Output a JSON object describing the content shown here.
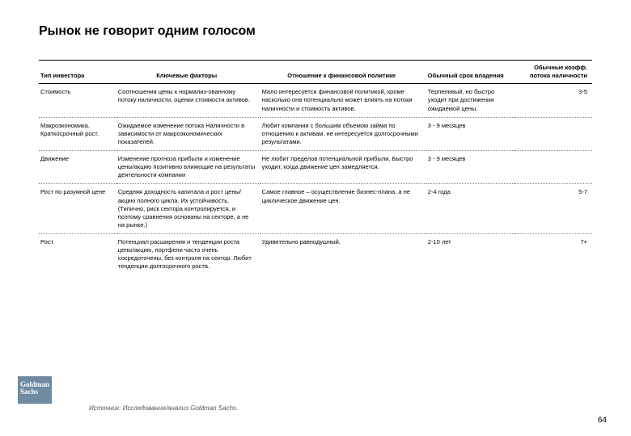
{
  "title": "Рынок не говорит одним голосом",
  "headers": {
    "c1": "Тип инвестора",
    "c2": "Ключевые факторы",
    "c3": "Отношение к финансовой политике",
    "c4": "Обычный срок владения",
    "c5": "Обычные коэфф. потока наличности"
  },
  "rows": [
    {
      "c1": "Стоимость",
      "c2": "Соотношения цены к нормализ-ованному потоку наличности, оценки стоимости активов.",
      "c3": "Мало интересуется финансовой политикой, кроме насколько она потенциально может влиять на потоки наличности и стоимость активов.",
      "c4": "Терпеливый, но быстро уходит при достижении ожидаемой цены.",
      "c5": "3-5"
    },
    {
      "c1": "Макроэкономика. Краткосрочный рост.",
      "c2": "Ожидаемое изменение потока Наличности в зависимости от макроэкономических показателей.",
      "c3": "Любит компании с большим объемом займа по отношению к активам, не интересуется долгосрочными результатами.",
      "c4": "3 - 9 месяцев",
      "c5": ""
    },
    {
      "c1": "Движение",
      "c2": "Изменение прогноза прибыли и изменение цены/акцию позитивно влияющие на результаты деятельности компании",
      "c3": "Не любит пределов потенциальной прибыли. Быстро уходит, когда движение цен замедляется.",
      "c4": "3 - 9 месяцев",
      "c5": ""
    },
    {
      "c1": "Рост по разумной цене",
      "c2": "Средняя доходность капитала и рост цены/акцию полного цикла. Их устойчивость. (Типично, риск сектора контролируется, и поэтому сравнения основаны на секторе, а не на рынке.)",
      "c3": "Самое главное – осуществление бизнес-плана, а не циклическое движение цен.",
      "c4": "2-4 года",
      "c5": "5-7"
    },
    {
      "c1": "Рост",
      "c2": "Потенциал расширения и тенденции роста цены/акцию, портфели часто очень сосредоточены, без контроля на сектор. Любит тенденции долгосрочного роста.",
      "c3": "Удивительно равнодушный.",
      "c4": "2-10 лет",
      "c5": "7+"
    }
  ],
  "logo": {
    "line1": "Goldman",
    "line2": "Sachs"
  },
  "source": "Источник: Исследование/анализ Goldman Sachs.",
  "pagenum": "64",
  "colors": {
    "logo_bg": "#6f8aa1",
    "text": "#000000",
    "dotted": "#888888",
    "bg": "#ffffff"
  }
}
